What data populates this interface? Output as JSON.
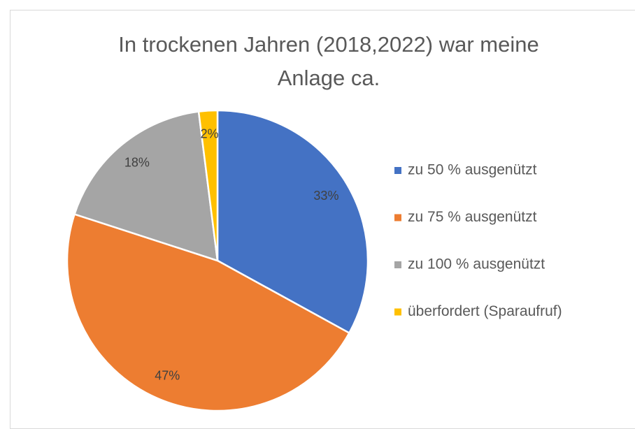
{
  "chart_data": {
    "type": "pie",
    "title": "In trockenen Jahren (2018,2022) war meine Anlage ca.",
    "categories": [
      "zu 50 % ausgenützt",
      "zu 75 % ausgenützt",
      "zu 100 % ausgenützt",
      "überfordert (Sparaufruf)"
    ],
    "values": [
      33,
      47,
      18,
      2
    ],
    "value_labels": [
      "33%",
      "47%",
      "18%",
      "2%"
    ],
    "colors": [
      "#4472c4",
      "#ed7d31",
      "#a5a5a5",
      "#ffc000"
    ],
    "legend": "right"
  }
}
